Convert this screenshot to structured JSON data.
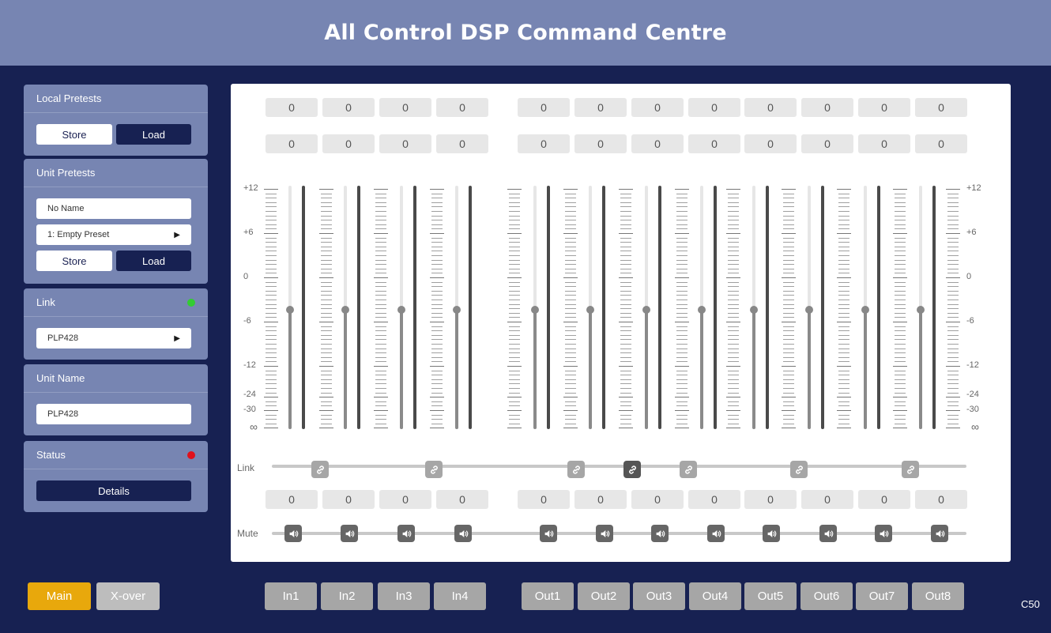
{
  "header": {
    "title": "All Control DSP Command Centre"
  },
  "local_presets": {
    "title": "Local Pretests",
    "store_label": "Store",
    "load_label": "Load"
  },
  "unit_presets": {
    "title": "Unit Pretests",
    "name_value": "No Name",
    "preset_value": "1: Empty Preset",
    "store_label": "Store",
    "load_label": "Load"
  },
  "link_panel": {
    "title": "Link",
    "status_color": "#33cc33",
    "device_value": "PLP428"
  },
  "unit_name": {
    "title": "Unit Name",
    "value": "PLP428"
  },
  "status": {
    "title": "Status",
    "status_color": "#e0111b",
    "details_label": "Details"
  },
  "mixer": {
    "top_row_1": [
      "0",
      "0",
      "0",
      "0",
      "0",
      "0",
      "0",
      "0",
      "0",
      "0",
      "0",
      "0"
    ],
    "top_row_2": [
      "0",
      "0",
      "0",
      "0",
      "0",
      "0",
      "0",
      "0",
      "0",
      "0",
      "0",
      "0"
    ],
    "bottom_row": [
      "0",
      "0",
      "0",
      "0",
      "0",
      "0",
      "0",
      "0",
      "0",
      "0",
      "0",
      "0"
    ],
    "scale_labels": [
      "+12",
      "+6",
      "0",
      "-6",
      "-12",
      "-24",
      "-30",
      "∞"
    ],
    "fader_levels_db": [
      -4,
      -4,
      -4,
      -4,
      -4,
      -4,
      -4,
      -4,
      -4,
      -4,
      -4,
      -4
    ],
    "link_label": "Link",
    "mute_label": "Mute",
    "link_states": [
      "off",
      "off",
      "off",
      "active",
      "off",
      "off",
      "off"
    ]
  },
  "tabs": {
    "main": "Main",
    "xover": "X-over",
    "inputs": [
      "In1",
      "In2",
      "In3",
      "In4"
    ],
    "outputs": [
      "Out1",
      "Out2",
      "Out3",
      "Out4",
      "Out5",
      "Out6",
      "Out7",
      "Out8"
    ]
  },
  "version": "C50",
  "colors": {
    "accent": "#e8a80c",
    "navy": "#172152",
    "panel": "#7785b2"
  }
}
